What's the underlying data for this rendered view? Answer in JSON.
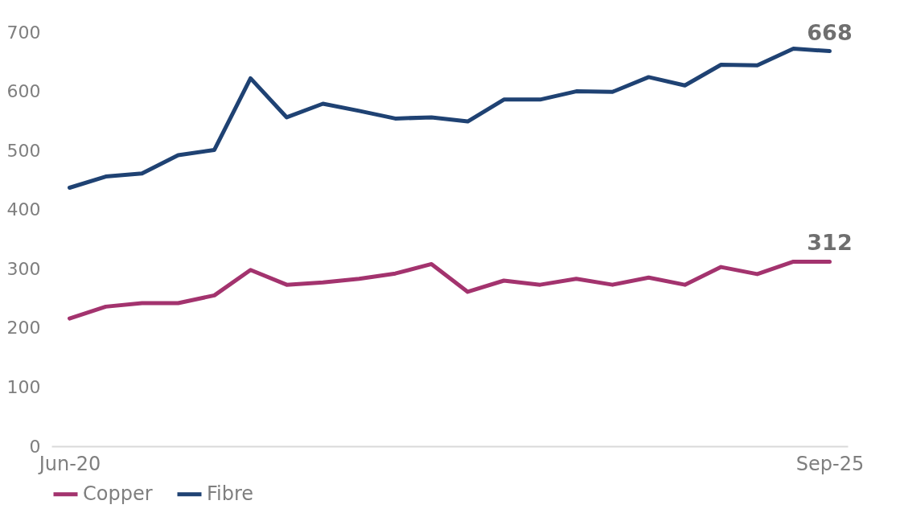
{
  "chart_data": {
    "type": "line",
    "categories": [
      "Jun-20",
      null,
      null,
      null,
      null,
      null,
      null,
      null,
      null,
      null,
      null,
      null,
      null,
      null,
      null,
      null,
      null,
      null,
      null,
      null,
      null,
      "Sep-25"
    ],
    "ylim": [
      0,
      700
    ],
    "yticks": [
      0,
      100,
      200,
      300,
      400,
      500,
      600,
      700
    ],
    "grid": false,
    "legend": "bottom",
    "series": [
      {
        "name": "Copper",
        "color": "#a3336e",
        "values": [
          216,
          236,
          242,
          242,
          255,
          298,
          273,
          277,
          283,
          292,
          308,
          261,
          280,
          273,
          283,
          273,
          285,
          273,
          303,
          291,
          312,
          312
        ],
        "value_labels": [
          null,
          null,
          null,
          null,
          null,
          null,
          null,
          null,
          null,
          null,
          null,
          null,
          null,
          null,
          null,
          null,
          null,
          null,
          null,
          null,
          null,
          "312"
        ]
      },
      {
        "name": "Fibre",
        "color": "#1f4273",
        "values": [
          437,
          456,
          461,
          492,
          501,
          622,
          556,
          579,
          567,
          554,
          556,
          549,
          586,
          586,
          600,
          599,
          624,
          610,
          645,
          644,
          672,
          668
        ],
        "value_labels": [
          null,
          null,
          null,
          null,
          null,
          null,
          null,
          null,
          null,
          null,
          null,
          null,
          null,
          null,
          null,
          null,
          null,
          null,
          null,
          null,
          null,
          "668"
        ]
      }
    ]
  }
}
